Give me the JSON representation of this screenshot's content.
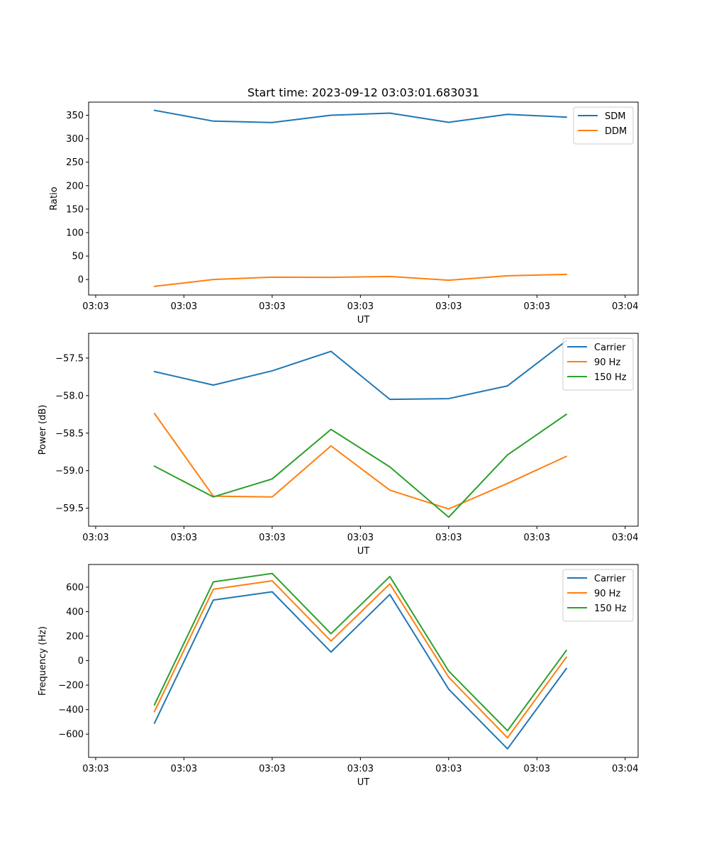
{
  "figure": {
    "title": "Start time: 2023-09-12 03:03:01.683031"
  },
  "chart_data": [
    {
      "type": "line",
      "title": "Start time: 2023-09-12 03:03:01.683031",
      "xlabel": "UT",
      "ylabel": "Ratio",
      "x_tick_labels": [
        "03:03",
        "03:03",
        "03:03",
        "03:03",
        "03:03",
        "03:03",
        "03:04"
      ],
      "x": [
        1,
        2,
        3,
        4,
        5,
        6,
        7,
        8
      ],
      "xlim": [
        -0.12,
        9.22
      ],
      "ylim": [
        -33,
        378
      ],
      "y_ticks": [
        0,
        50,
        100,
        150,
        200,
        250,
        300,
        350
      ],
      "legend_position": "top-right",
      "series": [
        {
          "name": "SDM",
          "color": "#1f77b4",
          "values": [
            360.5,
            337.5,
            334.5,
            350,
            354.5,
            335,
            352,
            346
          ]
        },
        {
          "name": "DDM",
          "color": "#ff7f0e",
          "values": [
            -14.5,
            0,
            5,
            4.5,
            6.5,
            -1.5,
            8,
            11
          ]
        }
      ]
    },
    {
      "type": "line",
      "xlabel": "UT",
      "ylabel": "Power (dB)",
      "x_tick_labels": [
        "03:03",
        "03:03",
        "03:03",
        "03:03",
        "03:03",
        "03:03",
        "03:04"
      ],
      "x": [
        1,
        2,
        3,
        4,
        5,
        6,
        7,
        8
      ],
      "xlim": [
        -0.12,
        9.22
      ],
      "ylim": [
        -59.74,
        -57.17
      ],
      "y_ticks": [
        -59.5,
        -59.0,
        -58.5,
        -58.0,
        -57.5
      ],
      "y_tick_labels": [
        "−59.5",
        "−59.0",
        "−58.5",
        "−58.0",
        "−57.5"
      ],
      "legend_position": "top-right",
      "series": [
        {
          "name": "Carrier",
          "color": "#1f77b4",
          "values": [
            -57.68,
            -57.86,
            -57.67,
            -57.41,
            -58.05,
            -58.04,
            -57.87,
            -57.27
          ]
        },
        {
          "name": "90 Hz",
          "color": "#ff7f0e",
          "values": [
            -58.24,
            -59.34,
            -59.35,
            -58.67,
            -59.26,
            -59.51,
            -59.17,
            -58.81
          ]
        },
        {
          "name": "150 Hz",
          "color": "#2ca02c",
          "values": [
            -58.94,
            -59.35,
            -59.11,
            -58.45,
            -58.95,
            -59.62,
            -58.79,
            -58.25
          ]
        }
      ]
    },
    {
      "type": "line",
      "xlabel": "UT",
      "ylabel": "Frequency (Hz)",
      "x_tick_labels": [
        "03:03",
        "03:03",
        "03:03",
        "03:03",
        "03:03",
        "03:03",
        "03:04"
      ],
      "x": [
        1,
        2,
        3,
        4,
        5,
        6,
        7,
        8
      ],
      "xlim": [
        -0.12,
        9.22
      ],
      "ylim": [
        -790,
        785
      ],
      "y_ticks": [
        -600,
        -400,
        -200,
        0,
        200,
        400,
        600
      ],
      "y_tick_labels": [
        "−600",
        "−400",
        "−200",
        "0",
        "200",
        "400",
        "600"
      ],
      "legend_position": "top-right",
      "series": [
        {
          "name": "Carrier",
          "color": "#1f77b4",
          "values": [
            -510,
            495,
            562,
            70,
            540,
            -233,
            -720,
            -65
          ]
        },
        {
          "name": "90 Hz",
          "color": "#ff7f0e",
          "values": [
            -415,
            583,
            652,
            160,
            627,
            -135,
            -630,
            28
          ]
        },
        {
          "name": "150 Hz",
          "color": "#2ca02c",
          "values": [
            -360,
            643,
            712,
            220,
            687,
            -85,
            -572,
            83
          ]
        }
      ]
    }
  ]
}
